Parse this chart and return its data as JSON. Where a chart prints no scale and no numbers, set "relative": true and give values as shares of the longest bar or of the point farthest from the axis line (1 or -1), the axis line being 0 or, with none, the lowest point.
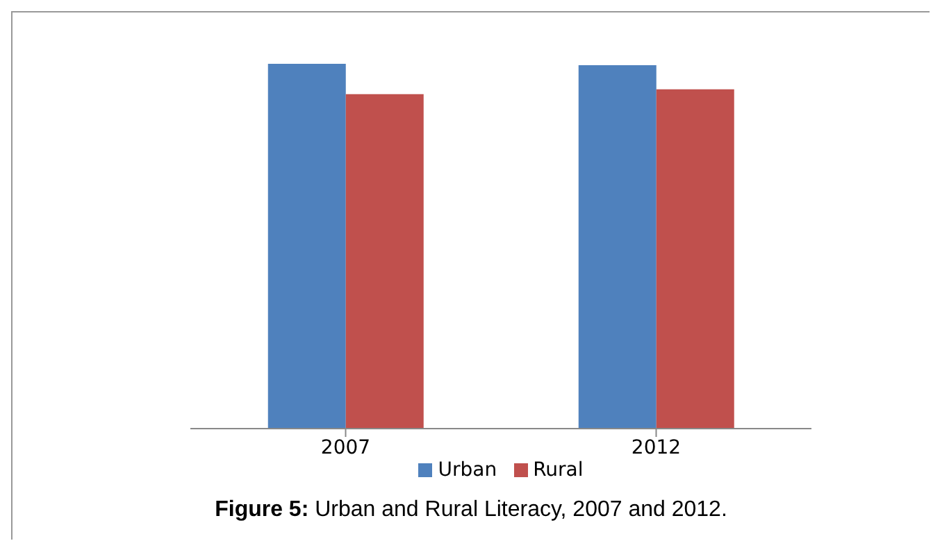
{
  "chart_data": {
    "type": "bar",
    "title": "Figure 5: Urban and Rural Literacy, 2007 and 2012.",
    "categories": [
      "2007",
      "2012"
    ],
    "relative": true,
    "legend": "bottom",
    "series": [
      {
        "name": "Urban",
        "color": "#4f81bd",
        "values": [
          1,
          0.996
        ]
      },
      {
        "name": "Rural",
        "color": "#c0504d",
        "values": [
          0.917,
          0.93
        ]
      }
    ]
  }
}
